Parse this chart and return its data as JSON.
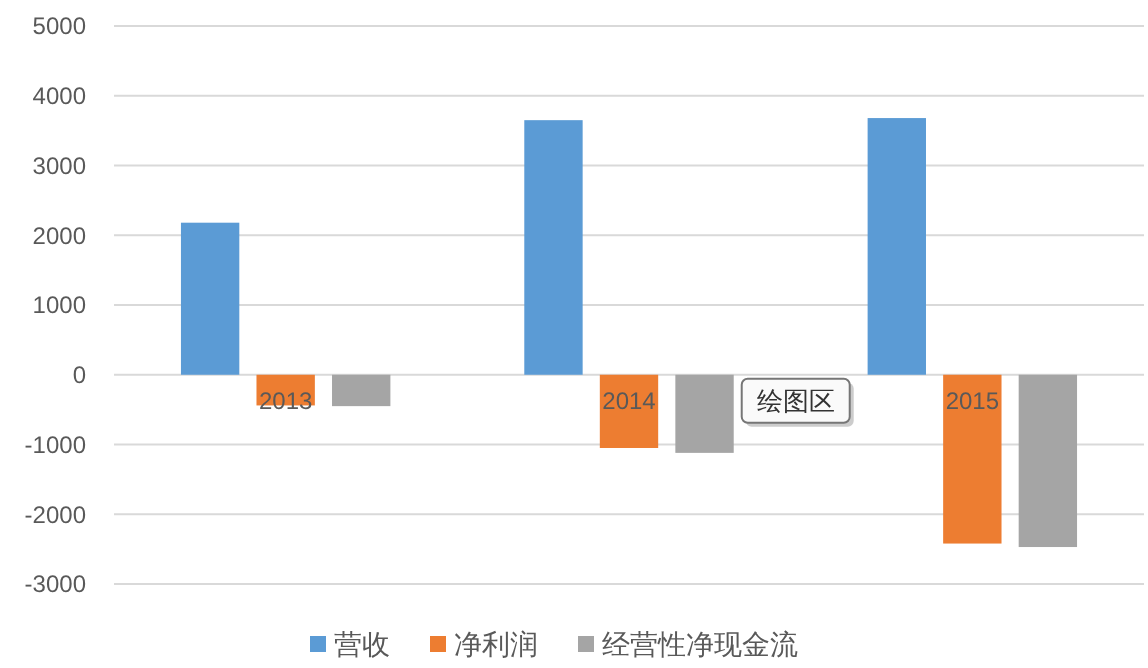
{
  "chart_data": {
    "type": "bar",
    "categories": [
      "2013",
      "2014",
      "2015"
    ],
    "series": [
      {
        "name": "营收",
        "color": "#5b9bd5",
        "values": [
          2180,
          3650,
          3680
        ]
      },
      {
        "name": "净利润",
        "color": "#ed7d31",
        "values": [
          -440,
          -1050,
          -2420
        ]
      },
      {
        "name": "经营性净现金流",
        "color": "#a5a5a5",
        "values": [
          -450,
          -1120,
          -2470
        ]
      }
    ],
    "ylim": [
      -3000,
      5000
    ],
    "yticks": [
      -3000,
      -2000,
      -1000,
      0,
      1000,
      2000,
      3000,
      4000,
      5000
    ],
    "grid": "y",
    "legend": "bottom",
    "annotations": [
      "绘图区"
    ]
  }
}
